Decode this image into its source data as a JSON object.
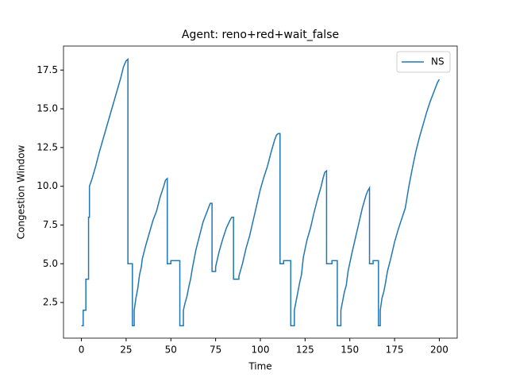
{
  "chart_data": {
    "type": "line",
    "title": "Agent: reno+red+wait_false",
    "xlabel": "Time",
    "ylabel": "Congestion Window",
    "x": [
      0,
      1,
      1,
      2.5,
      2.5,
      4,
      4,
      4.5,
      4.5,
      6,
      8,
      10,
      12,
      14,
      16,
      18,
      20,
      22,
      23.5,
      25,
      26,
      26,
      28.5,
      28.5,
      29.5,
      29.5,
      30.5,
      31.5,
      32.5,
      33.5,
      34,
      36,
      38,
      40,
      42,
      44,
      46,
      47,
      48,
      48,
      50,
      50,
      55,
      55,
      57,
      57,
      58,
      59,
      60,
      61,
      62,
      64,
      66,
      68,
      70,
      71,
      72,
      73,
      73,
      75,
      75,
      77,
      79,
      81,
      83,
      84,
      85,
      85,
      88,
      88,
      90,
      92,
      94,
      96,
      98,
      100,
      102,
      104,
      106,
      108,
      109,
      110,
      111,
      111,
      113,
      113,
      117,
      117,
      119,
      119,
      120,
      121,
      122,
      123,
      124,
      126,
      128,
      130,
      132,
      134,
      135,
      136,
      137,
      137,
      140,
      140,
      143,
      143,
      145,
      145,
      146,
      147,
      148,
      149,
      151,
      153,
      155,
      157,
      159,
      160,
      161,
      161,
      163,
      163,
      166,
      166,
      167,
      167,
      168,
      169,
      170,
      171,
      173,
      175,
      177,
      179,
      181,
      183,
      185,
      187,
      189,
      191,
      193,
      195,
      197,
      199,
      200
    ],
    "series": [
      {
        "name": "NS",
        "color": "#1f77b4",
        "values": [
          1,
          1,
          2,
          2,
          4,
          4,
          8,
          8,
          10,
          10.5,
          11.3,
          12.2,
          13,
          13.8,
          14.6,
          15.4,
          16.2,
          17,
          17.7,
          18.1,
          18.2,
          5,
          5,
          1,
          1,
          2,
          2.8,
          3.4,
          4.3,
          4.8,
          5.3,
          6.2,
          7,
          7.8,
          8.4,
          9.3,
          10,
          10.4,
          10.5,
          5,
          5,
          5.2,
          5.2,
          1,
          1,
          2,
          2.5,
          2.9,
          3.5,
          4,
          4.7,
          5.9,
          6.8,
          7.7,
          8.3,
          8.6,
          8.9,
          8.9,
          4.5,
          4.5,
          4.8,
          5.8,
          6.6,
          7.3,
          7.8,
          8,
          8,
          4,
          4,
          4.2,
          5,
          6,
          6.8,
          7.8,
          8.8,
          9.8,
          10.6,
          11.3,
          12.2,
          13,
          13.3,
          13.4,
          13.4,
          5,
          5,
          5.2,
          5.2,
          1,
          1,
          2,
          2.6,
          3.2,
          3.8,
          4.3,
          5.4,
          6.5,
          7.3,
          8.3,
          9.2,
          10,
          10.5,
          10.9,
          11,
          5,
          5,
          5.2,
          5.2,
          1,
          1,
          2,
          2.6,
          3.2,
          3.6,
          4.5,
          5.6,
          6.6,
          7.6,
          8.6,
          9.4,
          9.7,
          9.9,
          5,
          5,
          5.2,
          5.2,
          1,
          1,
          2,
          2.8,
          3.2,
          3.8,
          4.5,
          5.4,
          6.4,
          7.2,
          7.9,
          8.6,
          10,
          11.2,
          12.3,
          13.2,
          14,
          14.8,
          15.5,
          16.1,
          16.7,
          16.9
        ]
      }
    ],
    "xlim": [
      -10,
      210
    ],
    "xticks": [
      0,
      25,
      50,
      75,
      100,
      125,
      150,
      175,
      200
    ],
    "ylim": [
      0.2,
      19.05
    ],
    "yticks": [
      2.5,
      {
        "value": 5,
        "label": "5.0"
      },
      7.5,
      {
        "value": 10,
        "label": "10.0"
      },
      12.5,
      {
        "value": 15,
        "label": "15.0"
      },
      17.5
    ],
    "legend": "upper right"
  }
}
